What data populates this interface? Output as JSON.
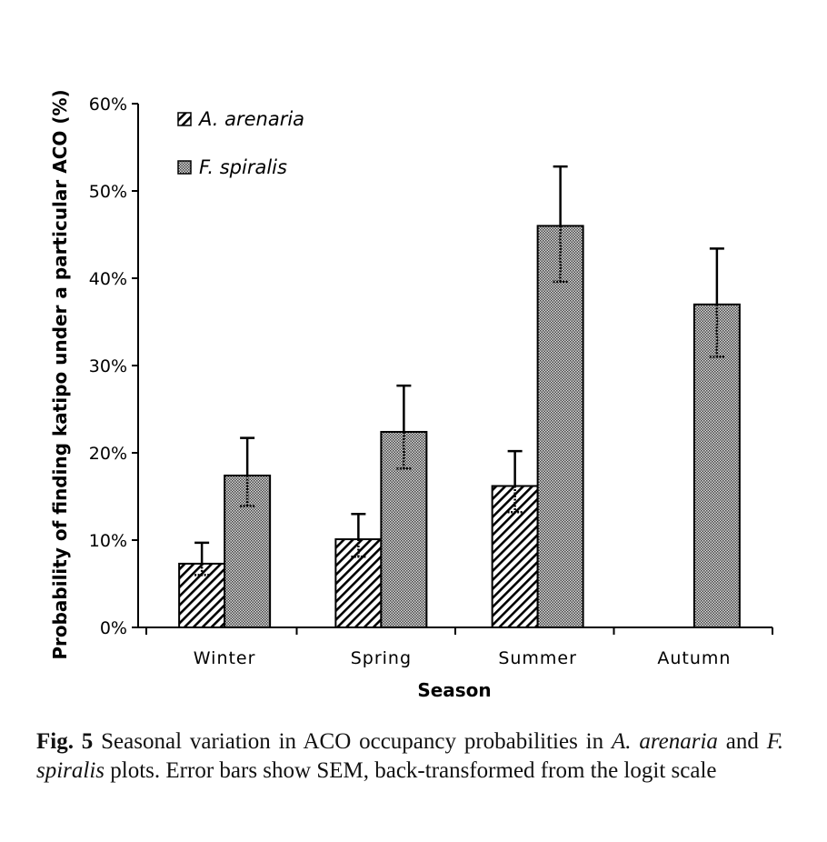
{
  "chart_data": {
    "type": "bar",
    "title": "",
    "xlabel": "Season",
    "ylabel": "Probability of finding katipo under a particular ACO (%)",
    "categories": [
      "Winter",
      "Spring",
      "Summer",
      "Autumn"
    ],
    "ylim": [
      0,
      60
    ],
    "yticks": [
      0,
      10,
      20,
      30,
      40,
      50,
      60
    ],
    "ytick_labels": [
      "0%",
      "10%",
      "20%",
      "30%",
      "40%",
      "50%",
      "60%"
    ],
    "grid": false,
    "legend_position": "top-left",
    "series": [
      {
        "name": "A. arenaria",
        "pattern": "diagonal-hatch",
        "values": [
          7.3,
          10.1,
          16.2,
          null
        ],
        "err_upper": [
          9.7,
          13.0,
          20.2,
          null
        ],
        "err_lower": [
          6.0,
          8.1,
          13.2,
          null
        ]
      },
      {
        "name": "F. spiralis",
        "pattern": "checkered",
        "values": [
          17.4,
          22.4,
          46.0,
          37.0
        ],
        "err_upper": [
          21.7,
          27.7,
          52.8,
          43.4
        ],
        "err_lower": [
          13.9,
          18.2,
          39.6,
          31.0
        ]
      }
    ]
  },
  "caption": {
    "label": "Fig. 5",
    "text_1": " Seasonal variation in ACO occupancy probabilities in ",
    "species_1": "A. arenaria",
    "text_2": " and ",
    "species_2": "F. spiralis",
    "text_3": " plots. Error bars show SEM, back-transformed from the logit scale"
  }
}
